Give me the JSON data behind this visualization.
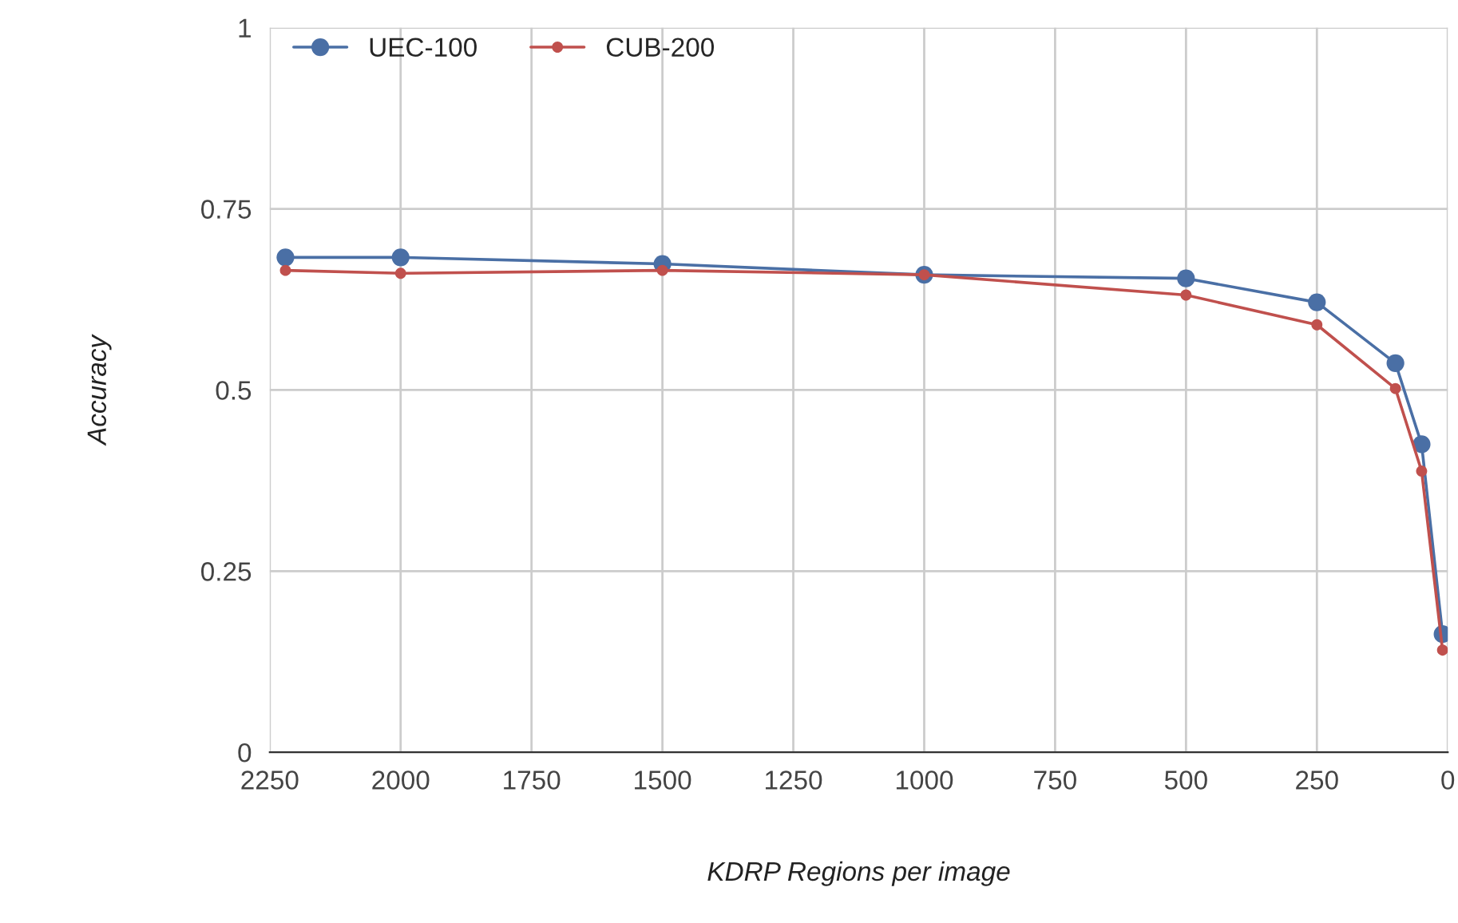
{
  "chart_data": {
    "type": "line",
    "xlabel": "KDRP Regions per image",
    "ylabel": "Accuracy",
    "x": [
      2220,
      2000,
      1500,
      1000,
      500,
      250,
      100,
      50,
      10
    ],
    "series": [
      {
        "name": "UEC-100",
        "color": "#4a6fa5",
        "values": [
          0.683,
          0.683,
          0.674,
          0.659,
          0.654,
          0.621,
          0.537,
          0.425,
          0.163
        ]
      },
      {
        "name": "CUB-200",
        "color": "#c0504d",
        "values": [
          0.665,
          0.661,
          0.665,
          0.659,
          0.631,
          0.59,
          0.502,
          0.388,
          0.141
        ]
      }
    ],
    "xlim": [
      2250,
      0
    ],
    "xticks": [
      2250,
      2000,
      1750,
      1500,
      1250,
      1000,
      750,
      500,
      250,
      0
    ],
    "ylim": [
      0,
      1
    ],
    "yticks": [
      0,
      0.25,
      0.5,
      0.75,
      1
    ],
    "grid": true,
    "legend": "top left",
    "marker": "circle",
    "line_style": "solid"
  }
}
